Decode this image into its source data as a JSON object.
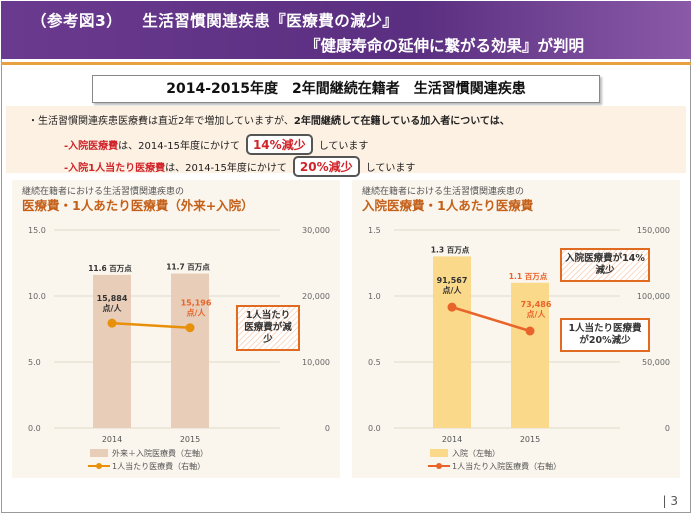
{
  "header": {
    "label": "（参考図3）",
    "line1": "生活習慣関連疾患『医療費の減少』",
    "line2": "『健康寿命の延伸に繋がる効果』が判明"
  },
  "subtitle": "2014-2015年度　2年間継続在籍者　生活習慣関連疾患",
  "bullets": {
    "b1_pre": "・生活習慣関連疾患医療費は直近2年で増加していますが、",
    "b1_bold": "2年間継続して在籍している加入者については、",
    "b2_red": "-入院医療費",
    "b2_mid": "は、2014-15年度にかけて",
    "b2_pill": "14%減少",
    "b2_post": "しています",
    "b3_red": "-入院1人当たり医療費",
    "b3_mid": "は、2014-15年度にかけて",
    "b3_pill": "20%減少",
    "b3_post": "しています"
  },
  "left_panel": {
    "sub": "継続在籍者における生活習慣関連疾患の",
    "title": "医療費・1人あたり医療費（外来+入院）",
    "callout": "1人当たり医療費が減少"
  },
  "right_panel": {
    "sub": "継続在籍者における生活習慣関連疾患の",
    "title": "入院医療費・1人あたり医療費",
    "callout1": "入院医療費が14%減少",
    "callout2": "1人当たり医療費が20%減少"
  },
  "page_number": "3",
  "colors": {
    "bar_left": "#e8cdb8",
    "bar_right": "#fbd98a",
    "line_left": "#e8900a",
    "line_right": "#e8642a",
    "accent": "#e06a20"
  },
  "chart_data": [
    {
      "type": "bar",
      "categories": [
        "2014",
        "2015"
      ],
      "series": [
        {
          "name": "外来＋入院医療費（左軸）",
          "axis": "left",
          "kind": "bar",
          "values": [
            11.6,
            11.7
          ],
          "labels": [
            "11.6 百万点",
            "11.7 百万点"
          ]
        },
        {
          "name": "1人当たり医療費（右軸）",
          "axis": "right",
          "kind": "line",
          "values": [
            15884,
            15196
          ],
          "labels": [
            "15,884",
            "15,196"
          ],
          "label_suffix": "点/人"
        }
      ],
      "left_axis": {
        "ylim": [
          0,
          15
        ],
        "ticks": [
          "0.0",
          "5.0",
          "10.0",
          "15.0"
        ]
      },
      "right_axis": {
        "ylim": [
          0,
          30000
        ],
        "ticks": [
          "0",
          "10,000",
          "20,000",
          "30,000"
        ]
      },
      "legend": "bottom"
    },
    {
      "type": "bar",
      "categories": [
        "2014",
        "2015"
      ],
      "series": [
        {
          "name": "入院（左軸）",
          "axis": "left",
          "kind": "bar",
          "values": [
            1.3,
            1.1
          ],
          "labels": [
            "1.3 百万点",
            "1.1 百万点"
          ]
        },
        {
          "name": "1人当たり入院医療費（右軸）",
          "axis": "right",
          "kind": "line",
          "values": [
            91567,
            73486
          ],
          "labels": [
            "91,567",
            "73,486"
          ],
          "label_suffix": "点/人"
        }
      ],
      "left_axis": {
        "ylim": [
          0,
          1.5
        ],
        "ticks": [
          "0.0",
          "0.5",
          "1.0",
          "1.5"
        ]
      },
      "right_axis": {
        "ylim": [
          0,
          150000
        ],
        "ticks": [
          "0",
          "50,000",
          "100,000",
          "150,000"
        ]
      },
      "legend": "bottom"
    }
  ]
}
